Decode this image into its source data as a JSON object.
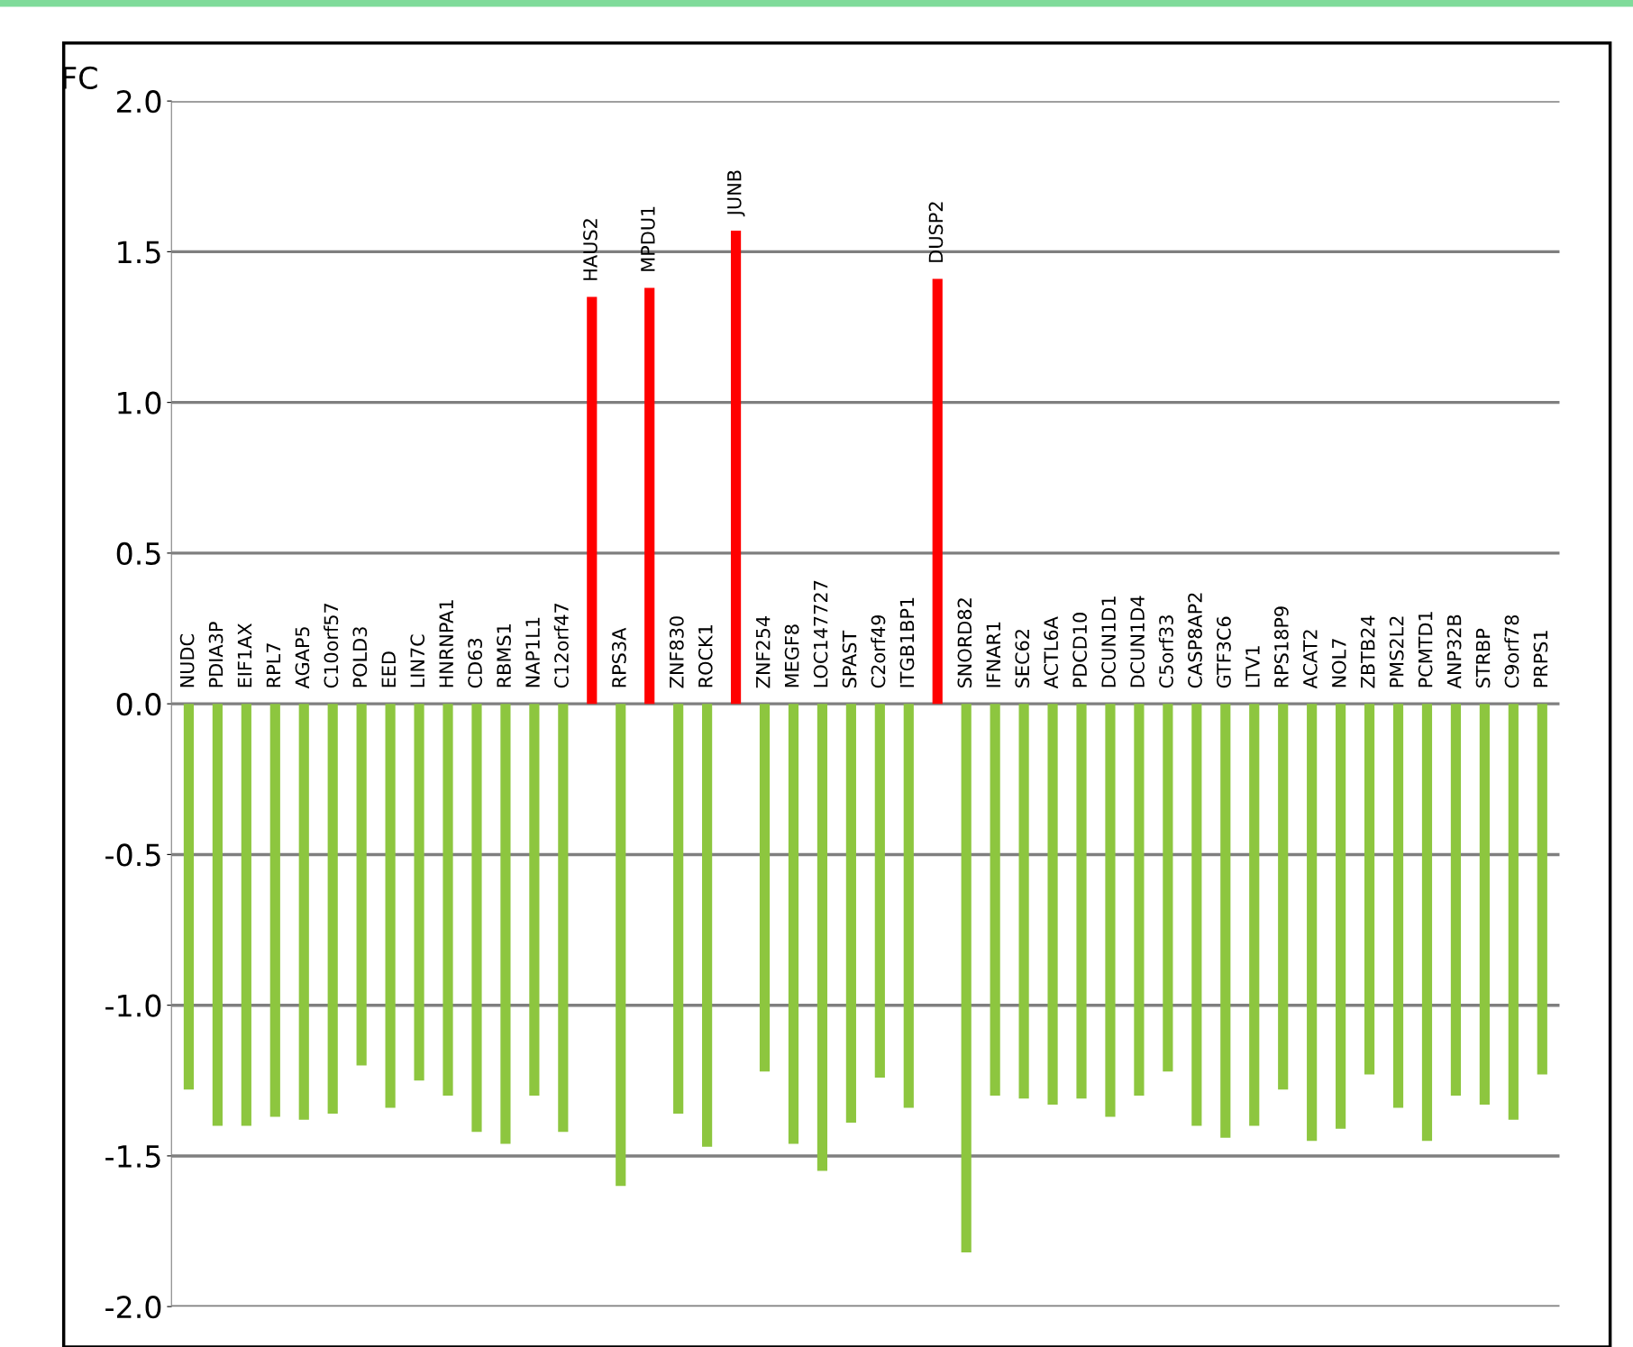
{
  "chart_data": {
    "type": "bar",
    "ylabel": "FC",
    "categories": [
      "NUDC",
      "PDIA3P",
      "EIF1AX",
      "RPL7",
      "AGAP5",
      "C10orf57",
      "POLD3",
      "EED",
      "LIN7C",
      "HNRNPA1",
      "CD63",
      "RBMS1",
      "NAP1L1",
      "C12orf47",
      "HAUS2",
      "RPS3A",
      "MPDU1",
      "ZNF830",
      "ROCK1",
      "JUNB",
      "ZNF254",
      "MEGF8",
      "LOC147727",
      "SPAST",
      "C2orf49",
      "ITGB1BP1",
      "DUSP2",
      "SNORD82",
      "IFNAR1",
      "SEC62",
      "ACTL6A",
      "PDCD10",
      "DCUN1D1",
      "DCUN1D4",
      "C5orf33",
      "CASP8AP2",
      "GTF3C6",
      "LTV1",
      "RPS18P9",
      "ACAT2",
      "NOL7",
      "ZBTB24",
      "PMS2L2",
      "PCMTD1",
      "ANP32B",
      "STRBP",
      "C9orf78",
      "PRPS1"
    ],
    "values": [
      -1.28,
      -1.4,
      -1.4,
      -1.37,
      -1.38,
      -1.36,
      -1.2,
      -1.34,
      -1.25,
      -1.3,
      -1.42,
      -1.46,
      -1.3,
      -1.42,
      1.35,
      -1.6,
      1.38,
      -1.36,
      -1.47,
      1.57,
      -1.22,
      -1.46,
      -1.55,
      -1.39,
      -1.24,
      -1.34,
      1.41,
      -1.82,
      -1.3,
      -1.31,
      -1.33,
      -1.31,
      -1.37,
      -1.3,
      -1.22,
      -1.4,
      -1.44,
      -1.4,
      -1.28,
      -1.45,
      -1.41,
      -1.23,
      -1.34,
      -1.45,
      -1.3,
      -1.33,
      -1.38,
      -1.23
    ],
    "colors": [
      "#8dc63f",
      "#8dc63f",
      "#8dc63f",
      "#8dc63f",
      "#8dc63f",
      "#8dc63f",
      "#8dc63f",
      "#8dc63f",
      "#8dc63f",
      "#8dc63f",
      "#8dc63f",
      "#8dc63f",
      "#8dc63f",
      "#8dc63f",
      "#ff0000",
      "#8dc63f",
      "#ff0000",
      "#8dc63f",
      "#8dc63f",
      "#ff0000",
      "#8dc63f",
      "#8dc63f",
      "#8dc63f",
      "#8dc63f",
      "#8dc63f",
      "#8dc63f",
      "#ff0000",
      "#8dc63f",
      "#8dc63f",
      "#8dc63f",
      "#8dc63f",
      "#8dc63f",
      "#8dc63f",
      "#8dc63f",
      "#8dc63f",
      "#8dc63f",
      "#8dc63f",
      "#8dc63f",
      "#8dc63f",
      "#8dc63f",
      "#8dc63f",
      "#8dc63f",
      "#8dc63f",
      "#8dc63f",
      "#8dc63f",
      "#8dc63f",
      "#8dc63f",
      "#8dc63f"
    ],
    "ylim": [
      -2.0,
      2.0
    ],
    "yticks": [
      {
        "value": -2.0,
        "label": "-2.0"
      },
      {
        "value": -1.5,
        "label": "-1.5"
      },
      {
        "value": -1.0,
        "label": "-1.0"
      },
      {
        "value": -0.5,
        "label": "-0.5"
      },
      {
        "value": 0.0,
        "label": "0.0"
      },
      {
        "value": 0.5,
        "label": "0.5"
      },
      {
        "value": 1.0,
        "label": "1.0"
      },
      {
        "value": 1.5,
        "label": "1.5"
      },
      {
        "value": 2.0,
        "label": "2.0"
      }
    ],
    "grid": "y"
  }
}
